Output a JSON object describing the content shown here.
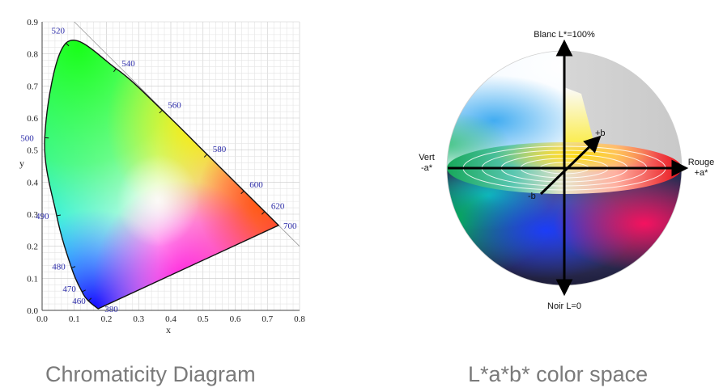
{
  "left_caption": "Chromaticity Diagram",
  "right_caption": "L*a*b* color space",
  "chart_data": {
    "type": "scatter",
    "xlabel": "x",
    "ylabel": "y",
    "xlim": [
      0.0,
      0.8
    ],
    "ylim": [
      0.0,
      0.9
    ],
    "xticks": [
      "0.0",
      "0.1",
      "0.2",
      "0.3",
      "0.4",
      "0.5",
      "0.6",
      "0.7",
      "0.8"
    ],
    "yticks": [
      "0.0",
      "0.1",
      "0.2",
      "0.3",
      "0.4",
      "0.5",
      "0.6",
      "0.7",
      "0.8",
      "0.9"
    ],
    "grid": true,
    "spectral_locus": [
      {
        "nm": "380",
        "x": 0.1741,
        "y": 0.005
      },
      {
        "nm": "460",
        "x": 0.144,
        "y": 0.0297
      },
      {
        "nm": "470",
        "x": 0.1241,
        "y": 0.0578
      },
      {
        "nm": "480",
        "x": 0.0913,
        "y": 0.1327
      },
      {
        "nm": "490",
        "x": 0.0454,
        "y": 0.295
      },
      {
        "nm": "500",
        "x": 0.0082,
        "y": 0.5384
      },
      {
        "nm": "520",
        "x": 0.0743,
        "y": 0.8338
      },
      {
        "nm": "540",
        "x": 0.2296,
        "y": 0.7543
      },
      {
        "nm": "560",
        "x": 0.3731,
        "y": 0.6245
      },
      {
        "nm": "580",
        "x": 0.5125,
        "y": 0.4866
      },
      {
        "nm": "600",
        "x": 0.627,
        "y": 0.3725
      },
      {
        "nm": "620",
        "x": 0.6915,
        "y": 0.3083
      },
      {
        "nm": "700",
        "x": 0.7347,
        "y": 0.2653
      }
    ]
  },
  "lab_diagram": {
    "top_label": "Blanc L*=100%",
    "bottom_label": "Noir L=0",
    "left_label_line1": "Vert",
    "left_label_line2": "-a*",
    "right_label_line1": "Rouge",
    "right_label_line2": "+a*",
    "plus_b_label": "+b",
    "minus_b_label": "-b"
  }
}
